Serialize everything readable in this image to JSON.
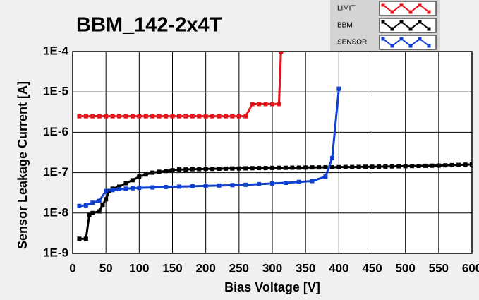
{
  "chart_data": {
    "type": "line",
    "title": "BBM_142-2x4T",
    "x_label": "Bias Voltage [V]",
    "y_label": "Sensor Leakage Current [A]",
    "ylog": true,
    "grid": true,
    "legend": "top-right",
    "xlim": [
      0,
      600
    ],
    "xticks": [
      0,
      50,
      100,
      150,
      200,
      250,
      300,
      350,
      400,
      450,
      500,
      550,
      600
    ],
    "ylim": [
      1e-09,
      0.0001
    ],
    "yticks": [
      {
        "value": 1e-09,
        "label": "1E-9"
      },
      {
        "value": 1e-08,
        "label": "1E-8"
      },
      {
        "value": 1e-07,
        "label": "1E-7"
      },
      {
        "value": 1e-06,
        "label": "1E-6"
      },
      {
        "value": 1e-05,
        "label": "1E-5"
      },
      {
        "value": 0.0001,
        "label": "1E-4"
      }
    ],
    "series": [
      {
        "name": "LIMIT",
        "color": "#e8141c",
        "x": [
          10,
          20,
          30,
          40,
          50,
          60,
          70,
          80,
          90,
          100,
          110,
          120,
          130,
          140,
          150,
          160,
          170,
          180,
          190,
          200,
          210,
          220,
          230,
          240,
          250,
          260,
          270,
          280,
          290,
          300,
          310,
          313
        ],
        "values": [
          2.5e-06,
          2.5e-06,
          2.5e-06,
          2.5e-06,
          2.5e-06,
          2.5e-06,
          2.5e-06,
          2.5e-06,
          2.5e-06,
          2.5e-06,
          2.5e-06,
          2.5e-06,
          2.5e-06,
          2.5e-06,
          2.5e-06,
          2.5e-06,
          2.5e-06,
          2.5e-06,
          2.5e-06,
          2.5e-06,
          2.5e-06,
          2.5e-06,
          2.5e-06,
          2.5e-06,
          2.5e-06,
          2.5e-06,
          5e-06,
          5e-06,
          5e-06,
          5e-06,
          5e-06,
          0.0001
        ]
      },
      {
        "name": "BBM",
        "color": "#000000",
        "x": [
          10,
          20,
          25,
          30,
          40,
          45,
          50,
          55,
          60,
          70,
          80,
          90,
          100,
          110,
          120,
          130,
          140,
          150,
          160,
          170,
          180,
          190,
          200,
          210,
          220,
          230,
          240,
          250,
          260,
          270,
          280,
          290,
          300,
          310,
          320,
          330,
          340,
          350,
          360,
          370,
          380,
          390,
          400,
          410,
          420,
          430,
          440,
          450,
          460,
          470,
          480,
          490,
          500,
          510,
          520,
          530,
          540,
          550,
          560,
          570,
          580,
          590,
          600
        ],
        "values": [
          2.3e-09,
          2.3e-09,
          9e-09,
          1e-08,
          1.1e-08,
          1.6e-08,
          2.2e-08,
          3.5e-08,
          4e-08,
          4.5e-08,
          5.5e-08,
          6.5e-08,
          8e-08,
          9e-08,
          1e-07,
          1.05e-07,
          1.1e-07,
          1.15e-07,
          1.2e-07,
          1.2e-07,
          1.22e-07,
          1.22e-07,
          1.24e-07,
          1.24e-07,
          1.25e-07,
          1.26e-07,
          1.27e-07,
          1.27e-07,
          1.28e-07,
          1.29e-07,
          1.3e-07,
          1.3e-07,
          1.31e-07,
          1.32e-07,
          1.32e-07,
          1.33e-07,
          1.33e-07,
          1.34e-07,
          1.35e-07,
          1.35e-07,
          1.36e-07,
          1.36e-07,
          1.37e-07,
          1.38e-07,
          1.38e-07,
          1.39e-07,
          1.4e-07,
          1.4e-07,
          1.41e-07,
          1.42e-07,
          1.43e-07,
          1.44e-07,
          1.45e-07,
          1.46e-07,
          1.47e-07,
          1.48e-07,
          1.49e-07,
          1.5e-07,
          1.52e-07,
          1.54e-07,
          1.56e-07,
          1.58e-07,
          1.6e-07
        ]
      },
      {
        "name": "SENSOR",
        "color": "#1040d0",
        "x": [
          10,
          20,
          30,
          40,
          50,
          60,
          70,
          80,
          90,
          100,
          120,
          140,
          160,
          180,
          200,
          220,
          240,
          260,
          280,
          300,
          320,
          340,
          360,
          380,
          390,
          400
        ],
        "values": [
          1.5e-08,
          1.55e-08,
          1.8e-08,
          2e-08,
          3.5e-08,
          3.7e-08,
          3.9e-08,
          4e-08,
          4.1e-08,
          4.2e-08,
          4.3e-08,
          4.4e-08,
          4.5e-08,
          4.6e-08,
          4.7e-08,
          4.8e-08,
          4.9e-08,
          5e-08,
          5.2e-08,
          5.4e-08,
          5.6e-08,
          5.9e-08,
          6.2e-08,
          8e-08,
          2.3e-07,
          1.2e-05
        ]
      }
    ]
  }
}
